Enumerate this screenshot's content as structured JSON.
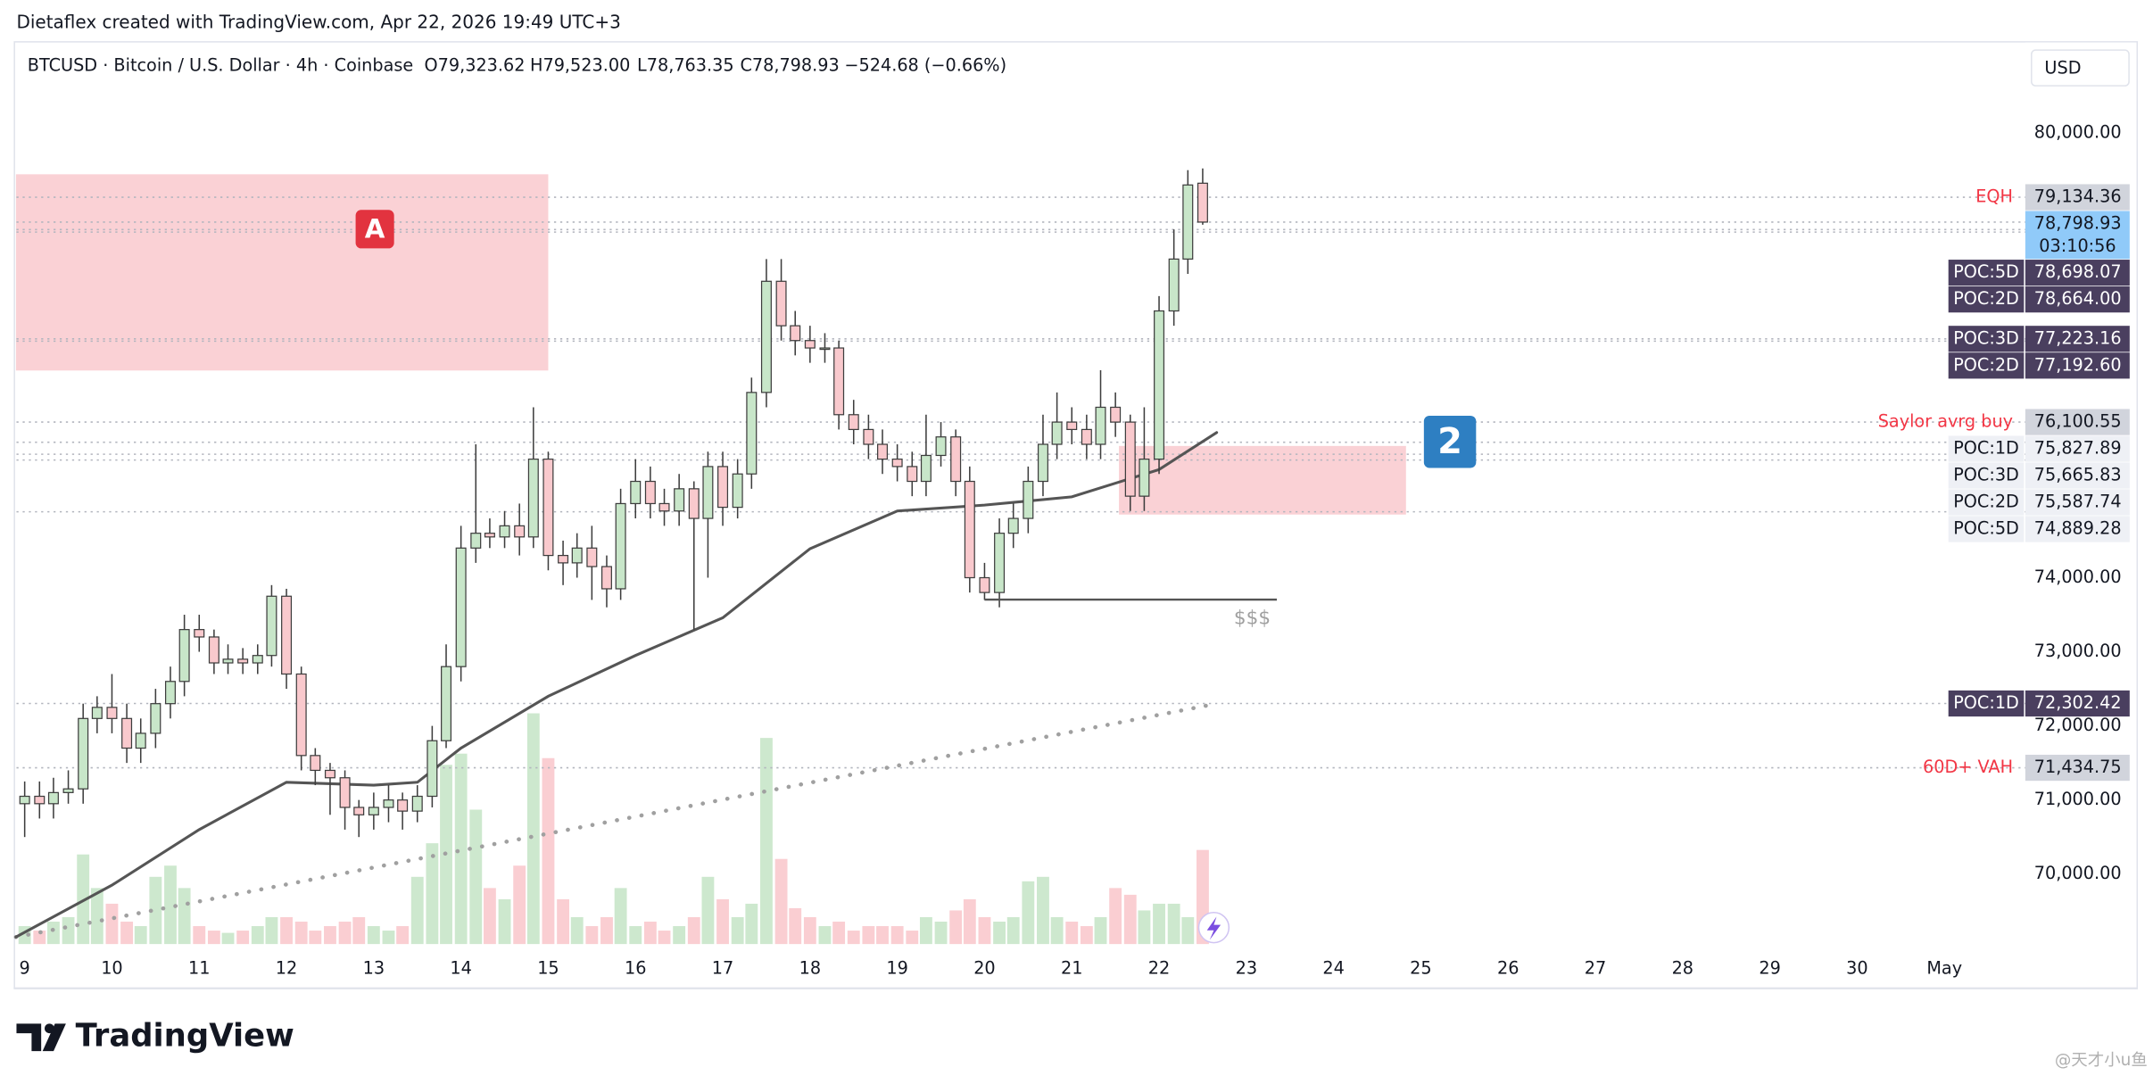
{
  "credit": "Dietaflex created with TradingView.com, Apr 22, 2026 19:49 UTC+3",
  "logo": "TradingView",
  "watermark": "@天才小u鱼",
  "chart_data": {
    "type": "candlestick",
    "header": {
      "symbol": "BTCUSD · Bitcoin / U.S. Dollar · 4h · Coinbase",
      "ohlc": [
        "O79,323.62",
        "H79,523.00",
        "L78,763.35",
        "C78,798.93"
      ],
      "change": "−524.68 (−0.66%)",
      "currency": "USD"
    },
    "x": [
      9,
      9.17,
      9.33,
      9.5,
      9.67,
      9.83,
      10,
      10.17,
      10.33,
      10.5,
      10.67,
      10.83,
      11,
      11.17,
      11.33,
      11.5,
      11.67,
      11.83,
      12,
      12.17,
      12.33,
      12.5,
      12.67,
      12.83,
      13,
      13.17,
      13.33,
      13.5,
      13.67,
      13.83,
      14,
      14.17,
      14.33,
      14.5,
      14.67,
      14.83,
      15,
      15.17,
      15.33,
      15.5,
      15.67,
      15.83,
      16,
      16.17,
      16.33,
      16.5,
      16.67,
      16.83,
      17,
      17.17,
      17.33,
      17.5,
      17.67,
      17.83,
      18,
      18.17,
      18.33,
      18.5,
      18.67,
      18.83,
      19,
      19.17,
      19.33,
      19.5,
      19.67,
      19.83,
      20,
      20.17,
      20.33,
      20.5,
      20.67,
      20.83,
      21,
      21.17,
      21.33,
      21.5,
      21.67,
      21.83,
      22,
      22.17,
      22.33,
      22.5
    ],
    "open": [
      70950,
      71050,
      70950,
      71100,
      71150,
      72100,
      72250,
      72100,
      71700,
      71900,
      72300,
      72600,
      73300,
      73200,
      72850,
      72900,
      72850,
      72950,
      73750,
      72700,
      71600,
      71400,
      71300,
      70900,
      70800,
      70900,
      71000,
      70850,
      71050,
      71800,
      72800,
      74400,
      74600,
      74550,
      74700,
      74550,
      75600,
      74300,
      74200,
      74400,
      74150,
      73850,
      75000,
      75300,
      75000,
      74900,
      75200,
      74800,
      75500,
      74950,
      75400,
      76500,
      78000,
      77400,
      77200,
      77100,
      77100,
      76200,
      76000,
      75800,
      75600,
      75500,
      75300,
      75650,
      75900,
      75300,
      74000,
      73800,
      74600,
      74800,
      75300,
      75800,
      76100,
      76000,
      75800,
      76300,
      76100,
      75100,
      75600,
      77600,
      78300,
      79323.62
    ],
    "high": [
      71250,
      71250,
      71300,
      71400,
      72300,
      72400,
      72700,
      72300,
      72100,
      72500,
      72800,
      73500,
      73500,
      73300,
      73100,
      73050,
      73100,
      73900,
      73850,
      72800,
      71700,
      71500,
      71400,
      71000,
      71100,
      71200,
      71100,
      71200,
      72000,
      73100,
      74700,
      75800,
      74800,
      74900,
      75000,
      76300,
      75700,
      74500,
      74600,
      74700,
      74300,
      75200,
      75600,
      75500,
      75200,
      75400,
      75300,
      75700,
      75700,
      75600,
      76700,
      78300,
      78300,
      77600,
      77400,
      77300,
      77200,
      76400,
      76200,
      76000,
      75800,
      75700,
      76200,
      76100,
      76000,
      75500,
      74200,
      74800,
      75000,
      75500,
      76200,
      76500,
      76300,
      76200,
      76800,
      76500,
      76200,
      76300,
      77800,
      78700,
      79500,
      79523
    ],
    "low": [
      70500,
      70750,
      70750,
      70950,
      70950,
      71900,
      71900,
      71500,
      71500,
      71700,
      72100,
      72400,
      73000,
      72700,
      72700,
      72700,
      72700,
      72800,
      72500,
      71400,
      71200,
      70800,
      70600,
      70500,
      70600,
      70700,
      70600,
      70700,
      70900,
      71700,
      72600,
      74200,
      74400,
      74400,
      74300,
      74400,
      74100,
      73900,
      74000,
      73700,
      73600,
      73700,
      74800,
      74800,
      74700,
      74700,
      73300,
      74000,
      74700,
      74800,
      75200,
      76300,
      77200,
      77000,
      76900,
      76900,
      76000,
      75800,
      75600,
      75400,
      75300,
      75100,
      75100,
      75500,
      75100,
      73800,
      73700,
      73600,
      74400,
      74600,
      75100,
      75600,
      75800,
      75600,
      75600,
      75900,
      74900,
      74900,
      75400,
      77400,
      78100,
      78763.35
    ],
    "close": [
      71050,
      70950,
      71100,
      71150,
      72100,
      72250,
      72100,
      71700,
      71900,
      72300,
      72600,
      73300,
      73200,
      72850,
      72900,
      72850,
      72950,
      73750,
      72700,
      71600,
      71400,
      71300,
      70900,
      70800,
      70900,
      71000,
      70850,
      71050,
      71800,
      72800,
      74400,
      74600,
      74550,
      74700,
      74550,
      75600,
      74300,
      74200,
      74400,
      74150,
      73850,
      75000,
      75300,
      75000,
      74900,
      75200,
      74800,
      75500,
      74950,
      75400,
      76500,
      78000,
      77400,
      77200,
      77100,
      77100,
      76200,
      76000,
      75800,
      75600,
      75500,
      75300,
      75650,
      75900,
      75300,
      74000,
      73800,
      74600,
      74800,
      75300,
      75800,
      76100,
      76000,
      75800,
      76300,
      76100,
      75100,
      75600,
      77600,
      78300,
      79300,
      78798.93
    ],
    "volume": [
      8,
      6,
      10,
      12,
      40,
      25,
      18,
      10,
      8,
      30,
      35,
      25,
      8,
      6,
      5,
      6,
      8,
      12,
      12,
      10,
      6,
      8,
      10,
      12,
      8,
      6,
      8,
      30,
      45,
      80,
      85,
      60,
      25,
      20,
      35,
      103,
      83,
      20,
      12,
      8,
      12,
      25,
      8,
      10,
      6,
      8,
      12,
      30,
      20,
      12,
      18,
      92,
      38,
      16,
      12,
      8,
      10,
      6,
      8,
      8,
      8,
      6,
      12,
      10,
      15,
      20,
      12,
      10,
      12,
      28,
      30,
      12,
      10,
      8,
      12,
      25,
      22,
      15,
      18,
      18,
      12,
      42
    ],
    "y2lim": [
      0,
      400
    ],
    "up_color": "#c8e6c9",
    "down_color": "#f9c9cd",
    "ma": {
      "x": [
        8.9,
        10,
        11,
        12,
        13,
        13.5,
        14,
        15,
        16,
        17,
        18,
        19,
        20,
        21,
        22,
        22.66
      ],
      "values": [
        69150,
        69850,
        70600,
        71240,
        71200,
        71240,
        71700,
        72400,
        72950,
        73460,
        74390,
        74900,
        74980,
        75090,
        75460,
        75960
      ],
      "color": "#555555"
    },
    "trend": {
      "x": [
        8.9,
        22.66
      ],
      "values": [
        69150,
        72300
      ],
      "color": "#a0a0a0"
    },
    "zones": [
      {
        "label": "A",
        "x": [
          8.9,
          15
        ],
        "y": [
          76796,
          79444
        ],
        "color": "#f9c9ce",
        "label_color": "#e2333f"
      },
      {
        "label": "2",
        "x": [
          21.54,
          24.83
        ],
        "y": [
          74852,
          75778
        ],
        "color": "#f9c9ce",
        "label_color": "#2e7fc2"
      }
    ],
    "sweep": {
      "label": "$$$",
      "x": [
        20,
        23.35
      ],
      "value": 73704
    },
    "levels": [
      {
        "name": "EQH",
        "value": 79134.36,
        "label": "79,134.36",
        "box_color": "#d1d4dc",
        "text_color": "#131722",
        "name_color": "#f23645",
        "name_position": "outside"
      },
      {
        "value": 78798.93,
        "label": "78,798.93",
        "countdown": "03:10:56",
        "box_color": "#90caf9",
        "text_color": "#131722"
      },
      {
        "name": "POC:5D",
        "value": 78698.07,
        "label": "78,698.07",
        "box_color": "#4a3f5f",
        "text_color": "#ffffff",
        "name_color": "#ffffff",
        "name_position": "inside"
      },
      {
        "name": "POC:2D",
        "value": 78664,
        "label": "78,664.00",
        "box_color": "#4a3f5f",
        "text_color": "#ffffff",
        "name_color": "#ffffff",
        "name_position": "inside"
      },
      {
        "name": "POC:3D",
        "value": 77223.16,
        "label": "77,223.16",
        "box_color": "#4a3f5f",
        "text_color": "#ffffff",
        "name_color": "#ffffff",
        "name_position": "inside"
      },
      {
        "name": "POC:2D",
        "value": 77192.6,
        "label": "77,192.60",
        "box_color": "#4a3f5f",
        "text_color": "#ffffff",
        "name_color": "#ffffff",
        "name_position": "inside"
      },
      {
        "name": "Saylor avrg buy",
        "value": 76100.55,
        "label": "76,100.55",
        "box_color": "#d1d4dc",
        "text_color": "#131722",
        "name_color": "#f23645",
        "name_position": "outside"
      },
      {
        "name": "POC:1D",
        "value": 75827.89,
        "label": "75,827.89",
        "box_color": "#eef0f5",
        "text_color": "#131722",
        "name_color": "#131722",
        "name_position": "inside"
      },
      {
        "name": "POC:3D",
        "value": 75665.83,
        "label": "75,665.83",
        "box_color": "#eef0f5",
        "text_color": "#131722",
        "name_color": "#131722",
        "name_position": "inside"
      },
      {
        "name": "POC:2D",
        "value": 75587.74,
        "label": "75,587.74",
        "box_color": "#eef0f5",
        "text_color": "#131722",
        "name_color": "#131722",
        "name_position": "inside"
      },
      {
        "name": "POC:5D",
        "value": 74889.28,
        "label": "74,889.28",
        "box_color": "#eef0f5",
        "text_color": "#131722",
        "name_color": "#131722",
        "name_position": "inside"
      },
      {
        "name": "POC:1D",
        "value": 72302.42,
        "label": "72,302.42",
        "box_color": "#4a3f5f",
        "text_color": "#ffffff",
        "name_color": "#ffffff",
        "name_position": "inside"
      },
      {
        "name": "60D+ VAH",
        "value": 71434.75,
        "label": "71,434.75",
        "box_color": "#d1d4dc",
        "text_color": "#131722",
        "name_color": "#f23645",
        "name_position": "outside"
      }
    ],
    "xlim": [
      8.906,
      31.927
    ],
    "ylim": [
      69056,
      81148
    ],
    "xticks": [
      9,
      10,
      11,
      12,
      13,
      14,
      15,
      16,
      17,
      18,
      19,
      20,
      21,
      22,
      23,
      24,
      25,
      26,
      27,
      28,
      29,
      30,
      {
        "value": 31,
        "label": "May"
      }
    ],
    "yticks": [
      {
        "value": 70000,
        "label": "70,000.00"
      },
      {
        "value": 71000,
        "label": "71,000.00"
      },
      {
        "value": 72000,
        "label": "72,000.00"
      },
      {
        "value": 73000,
        "label": "73,000.00"
      },
      {
        "value": 74000,
        "label": "74,000.00"
      },
      {
        "value": 80000,
        "label": "80,000.00"
      }
    ],
    "grid": false
  }
}
